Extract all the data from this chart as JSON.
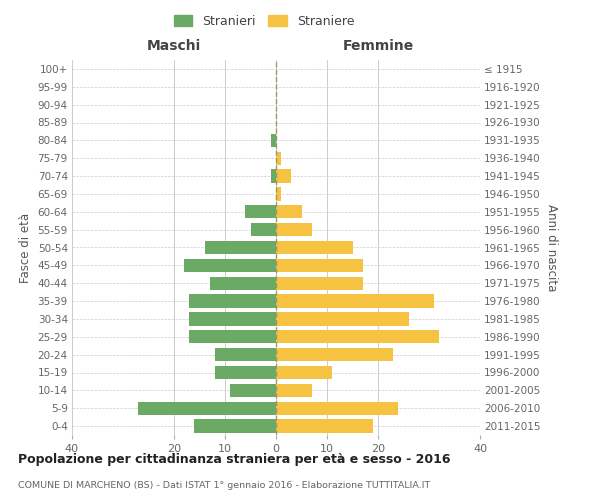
{
  "age_groups": [
    "0-4",
    "5-9",
    "10-14",
    "15-19",
    "20-24",
    "25-29",
    "30-34",
    "35-39",
    "40-44",
    "45-49",
    "50-54",
    "55-59",
    "60-64",
    "65-69",
    "70-74",
    "75-79",
    "80-84",
    "85-89",
    "90-94",
    "95-99",
    "100+"
  ],
  "birth_years": [
    "2011-2015",
    "2006-2010",
    "2001-2005",
    "1996-2000",
    "1991-1995",
    "1986-1990",
    "1981-1985",
    "1976-1980",
    "1971-1975",
    "1966-1970",
    "1961-1965",
    "1956-1960",
    "1951-1955",
    "1946-1950",
    "1941-1945",
    "1936-1940",
    "1931-1935",
    "1926-1930",
    "1921-1925",
    "1916-1920",
    "≤ 1915"
  ],
  "maschi": [
    16,
    27,
    9,
    12,
    12,
    17,
    17,
    17,
    13,
    18,
    14,
    5,
    6,
    0,
    1,
    0,
    1,
    0,
    0,
    0,
    0
  ],
  "femmine": [
    19,
    24,
    7,
    11,
    23,
    32,
    26,
    31,
    17,
    17,
    15,
    7,
    5,
    1,
    3,
    1,
    0,
    0,
    0,
    0,
    0
  ],
  "male_color": "#6aaa64",
  "female_color": "#f5c242",
  "male_label": "Stranieri",
  "female_label": "Straniere",
  "title": "Popolazione per cittadinanza straniera per età e sesso - 2016",
  "subtitle": "COMUNE DI MARCHENO (BS) - Dati ISTAT 1° gennaio 2016 - Elaborazione TUTTITALIA.IT",
  "ylabel_left": "Fasce di età",
  "ylabel_right": "Anni di nascita",
  "xlabel_left": "Maschi",
  "xlabel_right": "Femmine",
  "xlim": 40,
  "background_color": "#ffffff",
  "grid_color": "#cccccc",
  "bar_height": 0.75
}
